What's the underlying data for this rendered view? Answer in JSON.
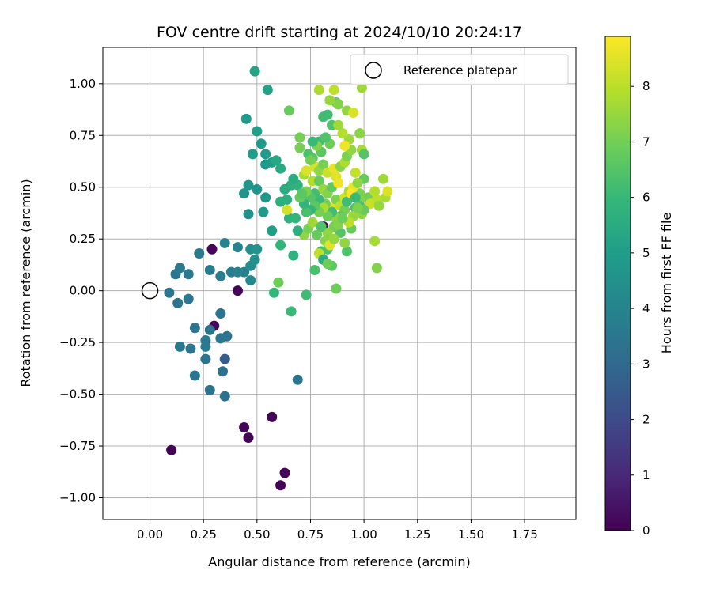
{
  "chart_data": {
    "type": "scatter",
    "title": "FOV centre drift starting at 2024/10/10 20:24:17",
    "xlabel": "Angular distance from reference (arcmin)",
    "ylabel": "Rotation from reference (arcmin)",
    "xlim": [
      -0.22,
      1.99
    ],
    "ylim": [
      -1.105,
      1.175
    ],
    "xticks": [
      "0.00",
      "0.25",
      "0.50",
      "0.75",
      "1.00",
      "1.25",
      "1.50",
      "1.75"
    ],
    "xtick_values": [
      0,
      0.25,
      0.5,
      0.75,
      1.0,
      1.25,
      1.5,
      1.75
    ],
    "yticks": [
      "1.00",
      "0.75",
      "0.50",
      "0.25",
      "0.00",
      "−0.25",
      "−0.50",
      "−0.75",
      "−1.00"
    ],
    "ytick_values": [
      1.0,
      0.75,
      0.5,
      0.25,
      0,
      -0.25,
      -0.5,
      -0.75,
      -1.0
    ],
    "grid": true,
    "legend_position": "top-right",
    "legend": [
      {
        "label": "Reference platepar",
        "marker": "open-circle"
      }
    ],
    "reference_point": {
      "x": 0.0,
      "y": 0.0
    },
    "colorbar": {
      "label": "Hours from first FF file",
      "colormap": "viridis",
      "range": [
        0,
        8.9
      ],
      "ticks": [
        "0",
        "1",
        "2",
        "3",
        "4",
        "5",
        "6",
        "7",
        "8"
      ],
      "tick_values": [
        0,
        1,
        2,
        3,
        4,
        5,
        6,
        7,
        8
      ]
    },
    "series": [
      {
        "points": [
          [
            0.1,
            -0.77,
            0.05
          ],
          [
            0.41,
            0.0,
            0.1
          ],
          [
            0.29,
            0.2,
            0.15
          ],
          [
            0.3,
            -0.17,
            0.2
          ],
          [
            0.44,
            -0.66,
            0.1
          ],
          [
            0.46,
            -0.71,
            0.05
          ],
          [
            0.57,
            -0.61,
            0.1
          ],
          [
            0.61,
            -0.94,
            0.05
          ],
          [
            0.63,
            -0.88,
            0.1
          ],
          [
            0.81,
            0.31,
            0.2
          ],
          [
            0.69,
            -0.43,
            3.4
          ],
          [
            0.35,
            -0.33,
            2.6
          ],
          [
            0.35,
            -0.51,
            3.3
          ],
          [
            0.28,
            -0.48,
            3.4
          ],
          [
            0.21,
            -0.41,
            3.5
          ],
          [
            0.34,
            -0.39,
            3.3
          ],
          [
            0.36,
            -0.22,
            3.4
          ],
          [
            0.33,
            -0.23,
            3.5
          ],
          [
            0.33,
            -0.11,
            3.4
          ],
          [
            0.28,
            -0.19,
            3.5
          ],
          [
            0.26,
            -0.24,
            3.6
          ],
          [
            0.26,
            -0.27,
            3.6
          ],
          [
            0.26,
            -0.33,
            3.5
          ],
          [
            0.19,
            -0.28,
            3.5
          ],
          [
            0.14,
            -0.27,
            3.6
          ],
          [
            0.21,
            -0.18,
            3.5
          ],
          [
            0.13,
            -0.06,
            3.4
          ],
          [
            0.18,
            -0.04,
            3.5
          ],
          [
            0.09,
            -0.01,
            3.5
          ],
          [
            0.12,
            0.08,
            3.5
          ],
          [
            0.14,
            0.11,
            3.6
          ],
          [
            0.18,
            0.08,
            3.6
          ],
          [
            0.23,
            0.18,
            3.6
          ],
          [
            0.28,
            0.1,
            3.7
          ],
          [
            0.33,
            0.07,
            3.8
          ],
          [
            0.35,
            0.23,
            3.9
          ],
          [
            0.38,
            0.09,
            3.8
          ],
          [
            0.41,
            0.09,
            3.9
          ],
          [
            0.41,
            0.21,
            3.9
          ],
          [
            0.44,
            0.09,
            4.0
          ],
          [
            0.47,
            0.05,
            4.2
          ],
          [
            0.47,
            0.12,
            4.3
          ],
          [
            0.47,
            0.2,
            4.4
          ],
          [
            0.49,
            0.15,
            4.5
          ],
          [
            0.5,
            0.2,
            4.6
          ],
          [
            0.46,
            0.37,
            4.5
          ],
          [
            0.44,
            0.47,
            4.6
          ],
          [
            0.46,
            0.51,
            4.7
          ],
          [
            0.5,
            0.49,
            4.6
          ],
          [
            0.54,
            0.45,
            4.7
          ],
          [
            0.53,
            0.38,
            4.8
          ],
          [
            0.57,
            0.29,
            5.0
          ],
          [
            0.54,
            0.61,
            4.8
          ],
          [
            0.57,
            0.62,
            5.0
          ],
          [
            0.54,
            0.66,
            4.8
          ],
          [
            0.48,
            0.66,
            4.9
          ],
          [
            0.52,
            0.71,
            4.8
          ],
          [
            0.5,
            0.77,
            5.0
          ],
          [
            0.45,
            0.83,
            4.8
          ],
          [
            0.49,
            1.06,
            5.2
          ],
          [
            0.55,
            0.97,
            5.1
          ],
          [
            0.59,
            0.63,
            5.3
          ],
          [
            0.61,
            0.59,
            5.4
          ],
          [
            0.63,
            0.49,
            5.5
          ],
          [
            0.64,
            0.44,
            5.6
          ],
          [
            0.66,
            0.51,
            5.6
          ],
          [
            0.69,
            0.51,
            5.7
          ],
          [
            0.65,
            0.35,
            5.7
          ],
          [
            0.68,
            0.35,
            5.8
          ],
          [
            0.67,
            0.17,
            5.7
          ],
          [
            0.61,
            0.22,
            5.8
          ],
          [
            0.58,
            -0.01,
            5.9
          ],
          [
            0.66,
            -0.1,
            6.0
          ],
          [
            0.73,
            -0.02,
            6.1
          ],
          [
            0.77,
            0.1,
            6.3
          ],
          [
            0.8,
            0.19,
            6.2
          ],
          [
            0.83,
            0.2,
            6.4
          ],
          [
            0.85,
            0.12,
            6.6
          ],
          [
            0.87,
            0.01,
            6.9
          ],
          [
            0.6,
            0.04,
            6.9
          ],
          [
            0.65,
            0.87,
            6.8
          ],
          [
            0.7,
            0.74,
            7.0
          ],
          [
            0.7,
            0.69,
            7.0
          ],
          [
            0.74,
            0.66,
            6.3
          ],
          [
            0.76,
            0.64,
            6.5
          ],
          [
            0.79,
            0.72,
            6.1
          ],
          [
            0.81,
            0.84,
            6.2
          ],
          [
            0.83,
            0.85,
            6.1
          ],
          [
            0.85,
            0.8,
            6.4
          ],
          [
            0.87,
            0.91,
            6.8
          ],
          [
            0.88,
            0.9,
            7.2
          ],
          [
            0.79,
            0.97,
            7.8
          ],
          [
            0.84,
            0.92,
            7.5
          ],
          [
            0.86,
            0.97,
            8.0
          ],
          [
            0.92,
            0.87,
            7.4
          ],
          [
            0.95,
            0.86,
            8.4
          ],
          [
            0.99,
            0.98,
            7.6
          ],
          [
            0.98,
            0.76,
            7.3
          ],
          [
            0.99,
            0.68,
            7.7
          ],
          [
            1.0,
            0.66,
            6.5
          ],
          [
            0.98,
            0.47,
            7.1
          ],
          [
            1.0,
            0.54,
            6.8
          ],
          [
            1.02,
            0.45,
            7.0
          ],
          [
            1.03,
            0.42,
            8.2
          ],
          [
            1.05,
            0.48,
            7.9
          ],
          [
            1.06,
            0.44,
            8.0
          ],
          [
            1.07,
            0.41,
            7.5
          ],
          [
            1.09,
            0.54,
            7.6
          ],
          [
            1.1,
            0.45,
            7.8
          ],
          [
            1.11,
            0.48,
            8.4
          ],
          [
            1.05,
            0.24,
            7.7
          ],
          [
            1.06,
            0.11,
            7.2
          ],
          [
            0.99,
            0.37,
            7.4
          ],
          [
            0.96,
            0.4,
            6.3
          ],
          [
            0.92,
            0.19,
            6.4
          ],
          [
            0.94,
            0.3,
            6.8
          ],
          [
            0.91,
            0.23,
            7.4
          ],
          [
            0.89,
            0.28,
            6.5
          ],
          [
            0.86,
            0.31,
            7.0
          ],
          [
            0.83,
            0.28,
            7.4
          ],
          [
            0.85,
            0.4,
            8.5
          ],
          [
            0.82,
            0.42,
            7.0
          ],
          [
            0.79,
            0.44,
            6.0
          ],
          [
            0.77,
            0.47,
            6.2
          ],
          [
            0.75,
            0.45,
            6.5
          ],
          [
            0.73,
            0.48,
            7.1
          ],
          [
            0.72,
            0.56,
            7.7
          ],
          [
            0.73,
            0.58,
            8.4
          ],
          [
            0.76,
            0.53,
            7.9
          ],
          [
            0.77,
            0.6,
            8.3
          ],
          [
            0.79,
            0.58,
            7.4
          ],
          [
            0.81,
            0.61,
            7.0
          ],
          [
            0.83,
            0.57,
            8.2
          ],
          [
            0.86,
            0.59,
            8.6
          ],
          [
            0.87,
            0.55,
            8.5
          ],
          [
            0.89,
            0.6,
            7.3
          ],
          [
            0.91,
            0.62,
            7.8
          ],
          [
            0.92,
            0.65,
            7.1
          ],
          [
            0.94,
            0.68,
            7.4
          ],
          [
            0.93,
            0.73,
            7.6
          ],
          [
            0.91,
            0.7,
            8.7
          ],
          [
            0.9,
            0.76,
            7.9
          ],
          [
            0.88,
            0.8,
            7.6
          ],
          [
            0.84,
            0.71,
            6.9
          ],
          [
            0.82,
            0.74,
            6.4
          ],
          [
            0.8,
            0.67,
            6.6
          ],
          [
            0.78,
            0.7,
            7.2
          ],
          [
            0.76,
            0.72,
            6.0
          ],
          [
            0.75,
            0.63,
            7.0
          ],
          [
            0.79,
            0.53,
            6.8
          ],
          [
            0.81,
            0.49,
            7.5
          ],
          [
            0.83,
            0.47,
            7.2
          ],
          [
            0.85,
            0.5,
            6.7
          ],
          [
            0.87,
            0.44,
            7.1
          ],
          [
            0.89,
            0.41,
            8.0
          ],
          [
            0.91,
            0.45,
            8.3
          ],
          [
            0.93,
            0.48,
            7.7
          ],
          [
            0.95,
            0.5,
            8.6
          ],
          [
            0.97,
            0.52,
            7.4
          ],
          [
            0.96,
            0.57,
            8.1
          ],
          [
            0.98,
            0.44,
            7.2
          ],
          [
            0.95,
            0.36,
            7.5
          ],
          [
            0.93,
            0.33,
            8.0
          ],
          [
            0.91,
            0.39,
            7.0
          ],
          [
            0.89,
            0.36,
            6.6
          ],
          [
            0.87,
            0.35,
            7.3
          ],
          [
            0.85,
            0.38,
            6.2
          ],
          [
            0.83,
            0.36,
            6.9
          ],
          [
            0.81,
            0.4,
            7.8
          ],
          [
            0.79,
            0.38,
            7.0
          ],
          [
            0.77,
            0.41,
            6.6
          ],
          [
            0.75,
            0.39,
            5.8
          ],
          [
            0.73,
            0.38,
            6.3
          ],
          [
            0.72,
            0.42,
            5.9
          ],
          [
            0.7,
            0.45,
            6.8
          ],
          [
            0.72,
            0.27,
            7.4
          ],
          [
            0.74,
            0.3,
            7.0
          ],
          [
            0.76,
            0.33,
            7.6
          ],
          [
            0.78,
            0.27,
            6.8
          ],
          [
            0.8,
            0.31,
            6.4
          ],
          [
            0.82,
            0.24,
            7.3
          ],
          [
            0.84,
            0.22,
            8.5
          ],
          [
            0.86,
            0.25,
            7.5
          ],
          [
            0.88,
            0.32,
            7.2
          ],
          [
            0.9,
            0.35,
            6.9
          ],
          [
            0.92,
            0.43,
            6.1
          ],
          [
            0.94,
            0.47,
            8.8
          ],
          [
            0.96,
            0.45,
            6.0
          ],
          [
            0.98,
            0.41,
            6.4
          ],
          [
            1.0,
            0.39,
            6.8
          ],
          [
            0.64,
            0.39,
            8.3
          ],
          [
            0.69,
            0.29,
            5.6
          ],
          [
            0.61,
            0.43,
            5.6
          ],
          [
            0.67,
            0.54,
            5.5
          ],
          [
            0.71,
            0.47,
            6.6
          ],
          [
            0.79,
            0.18,
            8.0
          ],
          [
            0.81,
            0.15,
            5.5
          ],
          [
            0.83,
            0.13,
            6.9
          ],
          [
            0.97,
            0.4,
            7.1
          ],
          [
            0.88,
            0.52,
            8.7
          ]
        ]
      }
    ]
  }
}
